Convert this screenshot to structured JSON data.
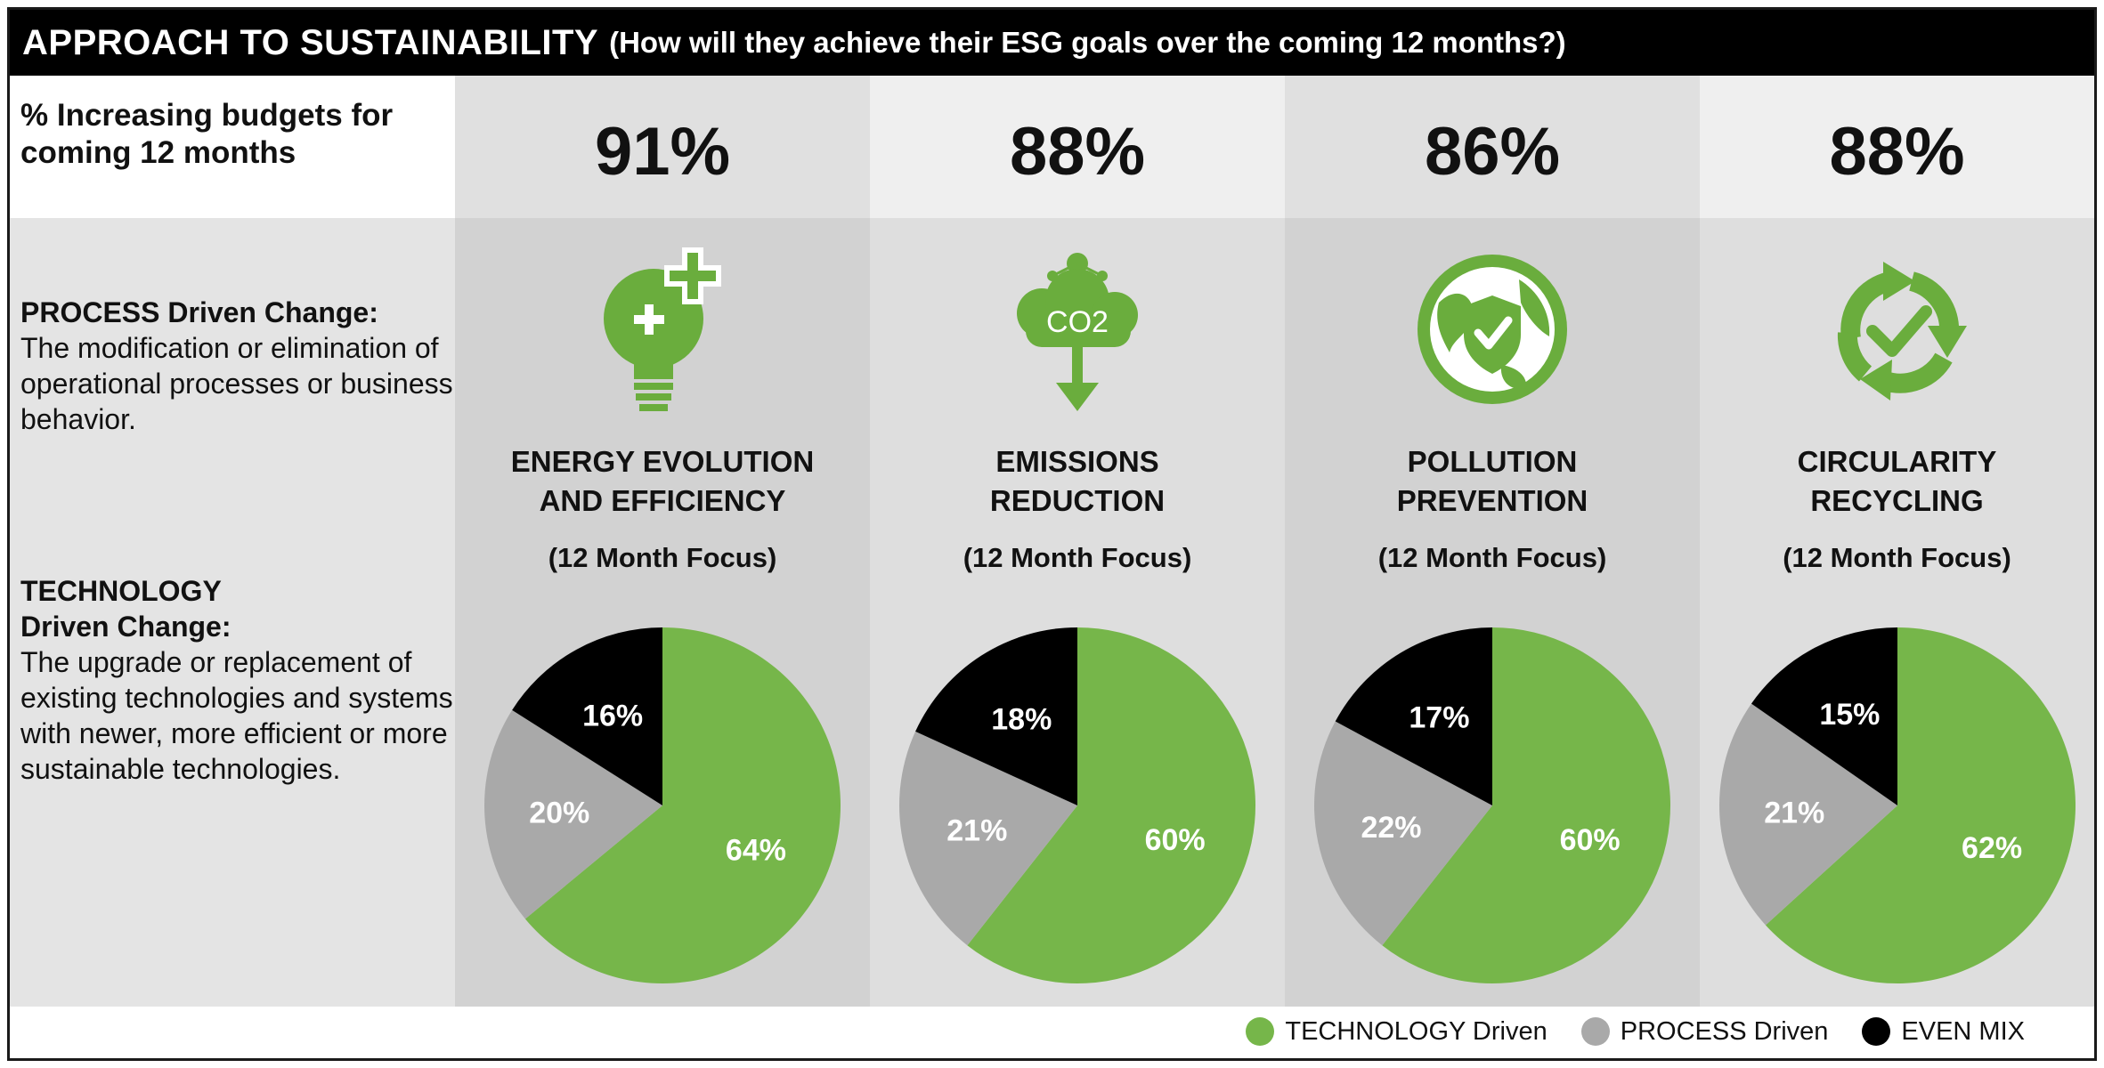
{
  "title": {
    "main": "APPROACH TO SUSTAINABILITY",
    "subtitle": "(How will they achieve their ESG goals over the coming 12 months?)"
  },
  "budget_label": "% Increasing budgets for coming 12 months",
  "process_definition": {
    "heading": "PROCESS Driven Change:",
    "text": "The modification or elimination of operational processes or business behavior."
  },
  "technology_definition": {
    "heading_line1": "TECHNOLOGY",
    "heading_line2": "Driven Change:",
    "text": "The upgrade or replacement of existing technologies and systems with newer, more efficient or more sustainable technologies."
  },
  "colors": {
    "technology": "#76b64a",
    "process": "#a9a9a9",
    "even_mix": "#000000",
    "icon_green": "#6aad3d",
    "panel_light": "#efefef",
    "panel_mid": "#d8d8d8"
  },
  "categories": [
    {
      "name_line1": "ENERGY EVOLUTION",
      "name_line2": "AND EFFICIENCY",
      "focus": "(12 Month Focus)",
      "budget_pct": "91%",
      "icon": "lightbulb-plus-icon"
    },
    {
      "name_line1": "EMISSIONS",
      "name_line2": "REDUCTION",
      "focus": "(12 Month Focus)",
      "budget_pct": "88%",
      "icon": "co2-cloud-icon",
      "icon_text": "CO2"
    },
    {
      "name_line1": "POLLUTION",
      "name_line2": "PREVENTION",
      "focus": "(12 Month Focus)",
      "budget_pct": "86%",
      "icon": "globe-shield-check-icon"
    },
    {
      "name_line1": "CIRCULARITY",
      "name_line2": "RECYCLING",
      "focus": "(12 Month Focus)",
      "budget_pct": "88%",
      "icon": "recycle-check-icon"
    }
  ],
  "legend": [
    {
      "label": "TECHNOLOGY Driven",
      "color": "#76b64a"
    },
    {
      "label": "PROCESS Driven",
      "color": "#a9a9a9"
    },
    {
      "label": "EVEN MIX",
      "color": "#000000"
    }
  ],
  "chart_data": [
    {
      "type": "pie",
      "title": "ENERGY EVOLUTION AND EFFICIENCY",
      "labels": [
        "TECHNOLOGY Driven",
        "PROCESS Driven",
        "EVEN MIX"
      ],
      "values": [
        64,
        20,
        16
      ],
      "value_labels": [
        "64%",
        "20%",
        "16%"
      ]
    },
    {
      "type": "pie",
      "title": "EMISSIONS REDUCTION",
      "labels": [
        "TECHNOLOGY Driven",
        "PROCESS Driven",
        "EVEN MIX"
      ],
      "values": [
        60,
        21,
        18
      ],
      "value_labels": [
        "60%",
        "21%",
        "18%"
      ]
    },
    {
      "type": "pie",
      "title": "POLLUTION PREVENTION",
      "labels": [
        "TECHNOLOGY Driven",
        "PROCESS Driven",
        "EVEN MIX"
      ],
      "values": [
        60,
        22,
        17
      ],
      "value_labels": [
        "60%",
        "22%",
        "17%"
      ]
    },
    {
      "type": "pie",
      "title": "CIRCULARITY RECYCLING",
      "labels": [
        "TECHNOLOGY Driven",
        "PROCESS Driven",
        "EVEN MIX"
      ],
      "values": [
        62,
        21,
        15
      ],
      "value_labels": [
        "62%",
        "21%",
        "15%"
      ]
    }
  ]
}
